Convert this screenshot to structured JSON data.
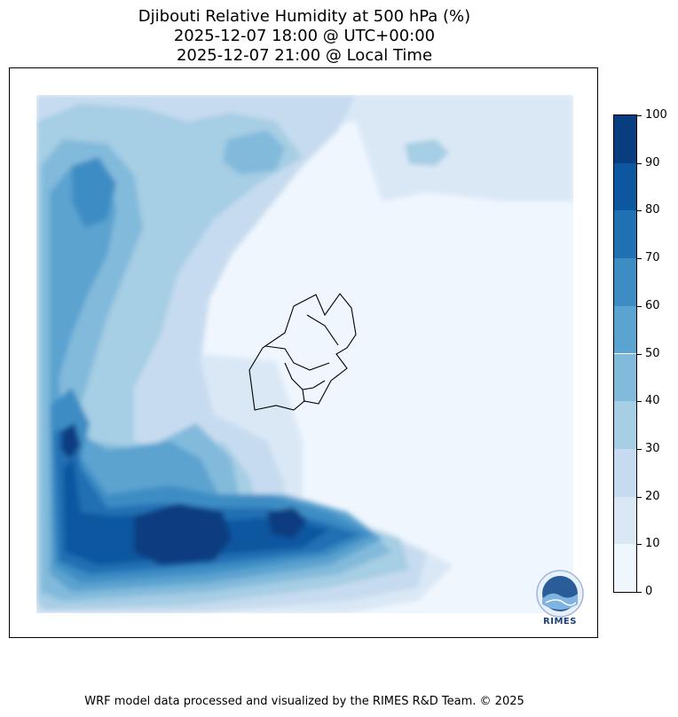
{
  "title": {
    "line1": "Djibouti Relative Humidity at 500 hPa (%)",
    "line2": "2025-12-07 18:00 @ UTC+00:00",
    "line3": "2025-12-07 21:00 @ Local Time"
  },
  "colorbar": {
    "ticks": [
      "0",
      "10",
      "20",
      "30",
      "40",
      "50",
      "60",
      "70",
      "80",
      "90",
      "100"
    ],
    "colors": [
      "#f0f6fd",
      "#dae8f6",
      "#c6dbef",
      "#a6cee4",
      "#82badb",
      "#5ba3d0",
      "#3d8dc4",
      "#2070b4",
      "#0d56a0",
      "#083e80"
    ]
  },
  "footer": "WRF model data processed and visualized by the RIMES R&D Team. © 2025",
  "logo": {
    "text": "RIMES",
    "ring_text": "Regional Integrated Multi-Hazard Early Warning System"
  },
  "chart_data": {
    "type": "heatmap",
    "variable": "Relative Humidity at 500 hPa",
    "units": "%",
    "color_scale": "Blues",
    "levels": [
      0,
      10,
      20,
      30,
      40,
      50,
      60,
      70,
      80,
      90,
      100
    ],
    "region": "Djibouti"
  }
}
